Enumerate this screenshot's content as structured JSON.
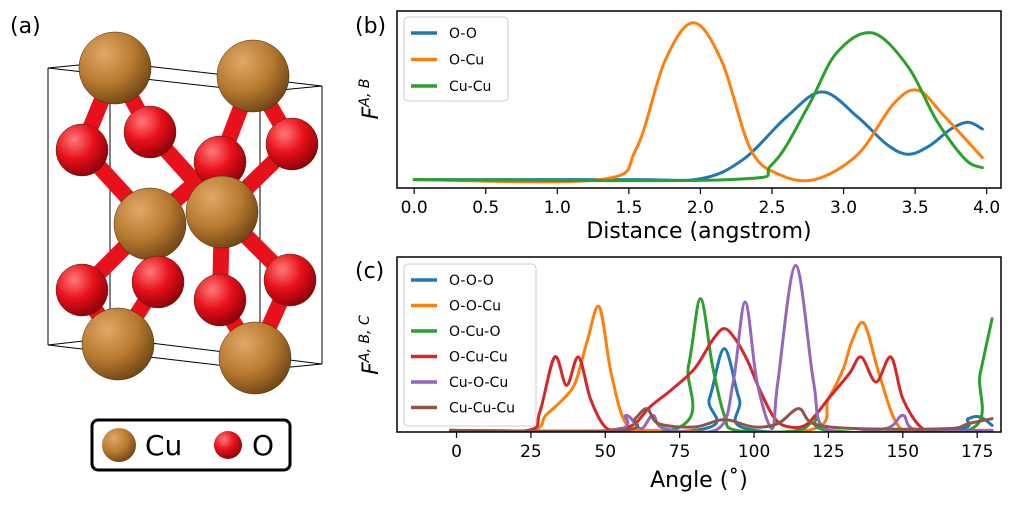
{
  "panel_labels": {
    "a": "(a)",
    "b": "(b)",
    "c": "(c)"
  },
  "atom_legend": {
    "items": [
      {
        "label": "Cu",
        "color": "#b87a30"
      },
      {
        "label": "O",
        "color": "#e8101a"
      }
    ]
  },
  "chart_data": [
    {
      "type": "line",
      "panel": "b",
      "title": "",
      "xlabel": "Distance (angstrom)",
      "ylabel": "F",
      "ylabel_sup": "A, B",
      "xlim": [
        -0.12,
        4.1
      ],
      "ylim": [
        0.0,
        1.05
      ],
      "xticks": [
        "0.0",
        "0.5",
        "1.0",
        "1.5",
        "2.0",
        "2.5",
        "3.0",
        "3.5",
        "4.0"
      ],
      "grid": false,
      "legend": "top-left",
      "series": [
        {
          "name": "O-O",
          "color": "#1f77b4",
          "points": [
            [
              0.0,
              0.05
            ],
            [
              1.5,
              0.05
            ],
            [
              2.0,
              0.055
            ],
            [
              2.3,
              0.17
            ],
            [
              2.6,
              0.42
            ],
            [
              2.85,
              0.57
            ],
            [
              3.1,
              0.42
            ],
            [
              3.3,
              0.26
            ],
            [
              3.45,
              0.2
            ],
            [
              3.6,
              0.25
            ],
            [
              3.75,
              0.35
            ],
            [
              3.87,
              0.39
            ],
            [
              3.97,
              0.35
            ]
          ]
        },
        {
          "name": "O-Cu",
          "color": "#ff7f0e",
          "points": [
            [
              0.0,
              0.05
            ],
            [
              1.3,
              0.05
            ],
            [
              1.55,
              0.23
            ],
            [
              1.75,
              0.75
            ],
            [
              1.95,
              0.98
            ],
            [
              2.15,
              0.75
            ],
            [
              2.35,
              0.23
            ],
            [
              2.55,
              0.08
            ],
            [
              2.8,
              0.05
            ],
            [
              3.1,
              0.2
            ],
            [
              3.35,
              0.5
            ],
            [
              3.52,
              0.58
            ],
            [
              3.7,
              0.43
            ],
            [
              3.97,
              0.18
            ]
          ]
        },
        {
          "name": "Cu-Cu",
          "color": "#2ca02c",
          "points": [
            [
              0.0,
              0.05
            ],
            [
              2.2,
              0.05
            ],
            [
              2.5,
              0.14
            ],
            [
              2.75,
              0.48
            ],
            [
              2.95,
              0.8
            ],
            [
              3.2,
              0.92
            ],
            [
              3.45,
              0.72
            ],
            [
              3.65,
              0.4
            ],
            [
              3.85,
              0.17
            ],
            [
              3.97,
              0.12
            ]
          ]
        }
      ]
    },
    {
      "type": "line",
      "panel": "c",
      "title": "",
      "xlabel": "Angle (˚)",
      "ylabel": "F",
      "ylabel_sup": "A, B, C",
      "xlim": [
        -20,
        183
      ],
      "ylim": [
        0.0,
        1.05
      ],
      "xticks": [
        "0",
        "25",
        "50",
        "75",
        "100",
        "125",
        "150",
        "175"
      ],
      "grid": false,
      "legend": "top-left",
      "series": [
        {
          "name": "O-O-O",
          "color": "#1f77b4",
          "points": [
            [
              -2,
              0.01
            ],
            [
              80,
              0.01
            ],
            [
              85,
              0.2
            ],
            [
              90,
              0.5
            ],
            [
              95,
              0.2
            ],
            [
              100,
              0.01
            ],
            [
              165,
              0.01
            ],
            [
              172,
              0.08
            ],
            [
              176,
              0.09
            ],
            [
              180,
              0.04
            ]
          ]
        },
        {
          "name": "O-O-Cu",
          "color": "#ff7f0e",
          "points": [
            [
              -2,
              0.01
            ],
            [
              25,
              0.01
            ],
            [
              30,
              0.1
            ],
            [
              36,
              0.2
            ],
            [
              40,
              0.3
            ],
            [
              44,
              0.55
            ],
            [
              48,
              0.75
            ],
            [
              52,
              0.35
            ],
            [
              57,
              0.05
            ],
            [
              65,
              0.01
            ],
            [
              118,
              0.01
            ],
            [
              125,
              0.2
            ],
            [
              130,
              0.38
            ],
            [
              133,
              0.55
            ],
            [
              137,
              0.65
            ],
            [
              142,
              0.35
            ],
            [
              148,
              0.05
            ],
            [
              155,
              0.01
            ],
            [
              180,
              0.01
            ]
          ]
        },
        {
          "name": "O-Cu-O",
          "color": "#2ca02c",
          "points": [
            [
              -2,
              0.01
            ],
            [
              72,
              0.01
            ],
            [
              78,
              0.4
            ],
            [
              82,
              0.8
            ],
            [
              86,
              0.4
            ],
            [
              90,
              0.1
            ],
            [
              94,
              0.01
            ],
            [
              115,
              0.01
            ],
            [
              121,
              0.1
            ],
            [
              125,
              0.01
            ],
            [
              172,
              0.01
            ],
            [
              176,
              0.35
            ],
            [
              180,
              0.68
            ]
          ]
        },
        {
          "name": "O-Cu-Cu",
          "color": "#d62728",
          "points": [
            [
              -2,
              0.01
            ],
            [
              24,
              0.01
            ],
            [
              28,
              0.12
            ],
            [
              33,
              0.45
            ],
            [
              37,
              0.28
            ],
            [
              41,
              0.45
            ],
            [
              45,
              0.2
            ],
            [
              50,
              0.03
            ],
            [
              55,
              0.02
            ],
            [
              60,
              0.05
            ],
            [
              65,
              0.15
            ],
            [
              72,
              0.25
            ],
            [
              80,
              0.38
            ],
            [
              86,
              0.55
            ],
            [
              90,
              0.62
            ],
            [
              94,
              0.55
            ],
            [
              98,
              0.42
            ],
            [
              102,
              0.25
            ],
            [
              107,
              0.08
            ],
            [
              112,
              0.03
            ],
            [
              118,
              0.05
            ],
            [
              125,
              0.2
            ],
            [
              132,
              0.35
            ],
            [
              136,
              0.45
            ],
            [
              141,
              0.3
            ],
            [
              146,
              0.45
            ],
            [
              150,
              0.2
            ],
            [
              156,
              0.03
            ],
            [
              162,
              0.01
            ],
            [
              180,
              0.01
            ]
          ]
        },
        {
          "name": "Cu-O-Cu",
          "color": "#9467bd",
          "points": [
            [
              -2,
              0.01
            ],
            [
              52,
              0.01
            ],
            [
              57,
              0.1
            ],
            [
              62,
              0.02
            ],
            [
              66,
              0.1
            ],
            [
              70,
              0.02
            ],
            [
              88,
              0.02
            ],
            [
              93,
              0.3
            ],
            [
              97,
              0.78
            ],
            [
              101,
              0.3
            ],
            [
              106,
              0.02
            ],
            [
              108,
              0.3
            ],
            [
              114,
              1.0
            ],
            [
              120,
              0.3
            ],
            [
              124,
              0.02
            ],
            [
              144,
              0.02
            ],
            [
              150,
              0.1
            ],
            [
              155,
              0.01
            ],
            [
              180,
              0.01
            ]
          ]
        },
        {
          "name": "Cu-Cu-Cu",
          "color": "#8c564b",
          "points": [
            [
              -2,
              0.01
            ],
            [
              55,
              0.01
            ],
            [
              60,
              0.08
            ],
            [
              64,
              0.14
            ],
            [
              68,
              0.05
            ],
            [
              80,
              0.03
            ],
            [
              88,
              0.07
            ],
            [
              92,
              0.07
            ],
            [
              100,
              0.03
            ],
            [
              108,
              0.05
            ],
            [
              115,
              0.14
            ],
            [
              120,
              0.05
            ],
            [
              135,
              0.02
            ],
            [
              165,
              0.02
            ],
            [
              172,
              0.05
            ],
            [
              180,
              0.08
            ]
          ]
        }
      ]
    }
  ]
}
